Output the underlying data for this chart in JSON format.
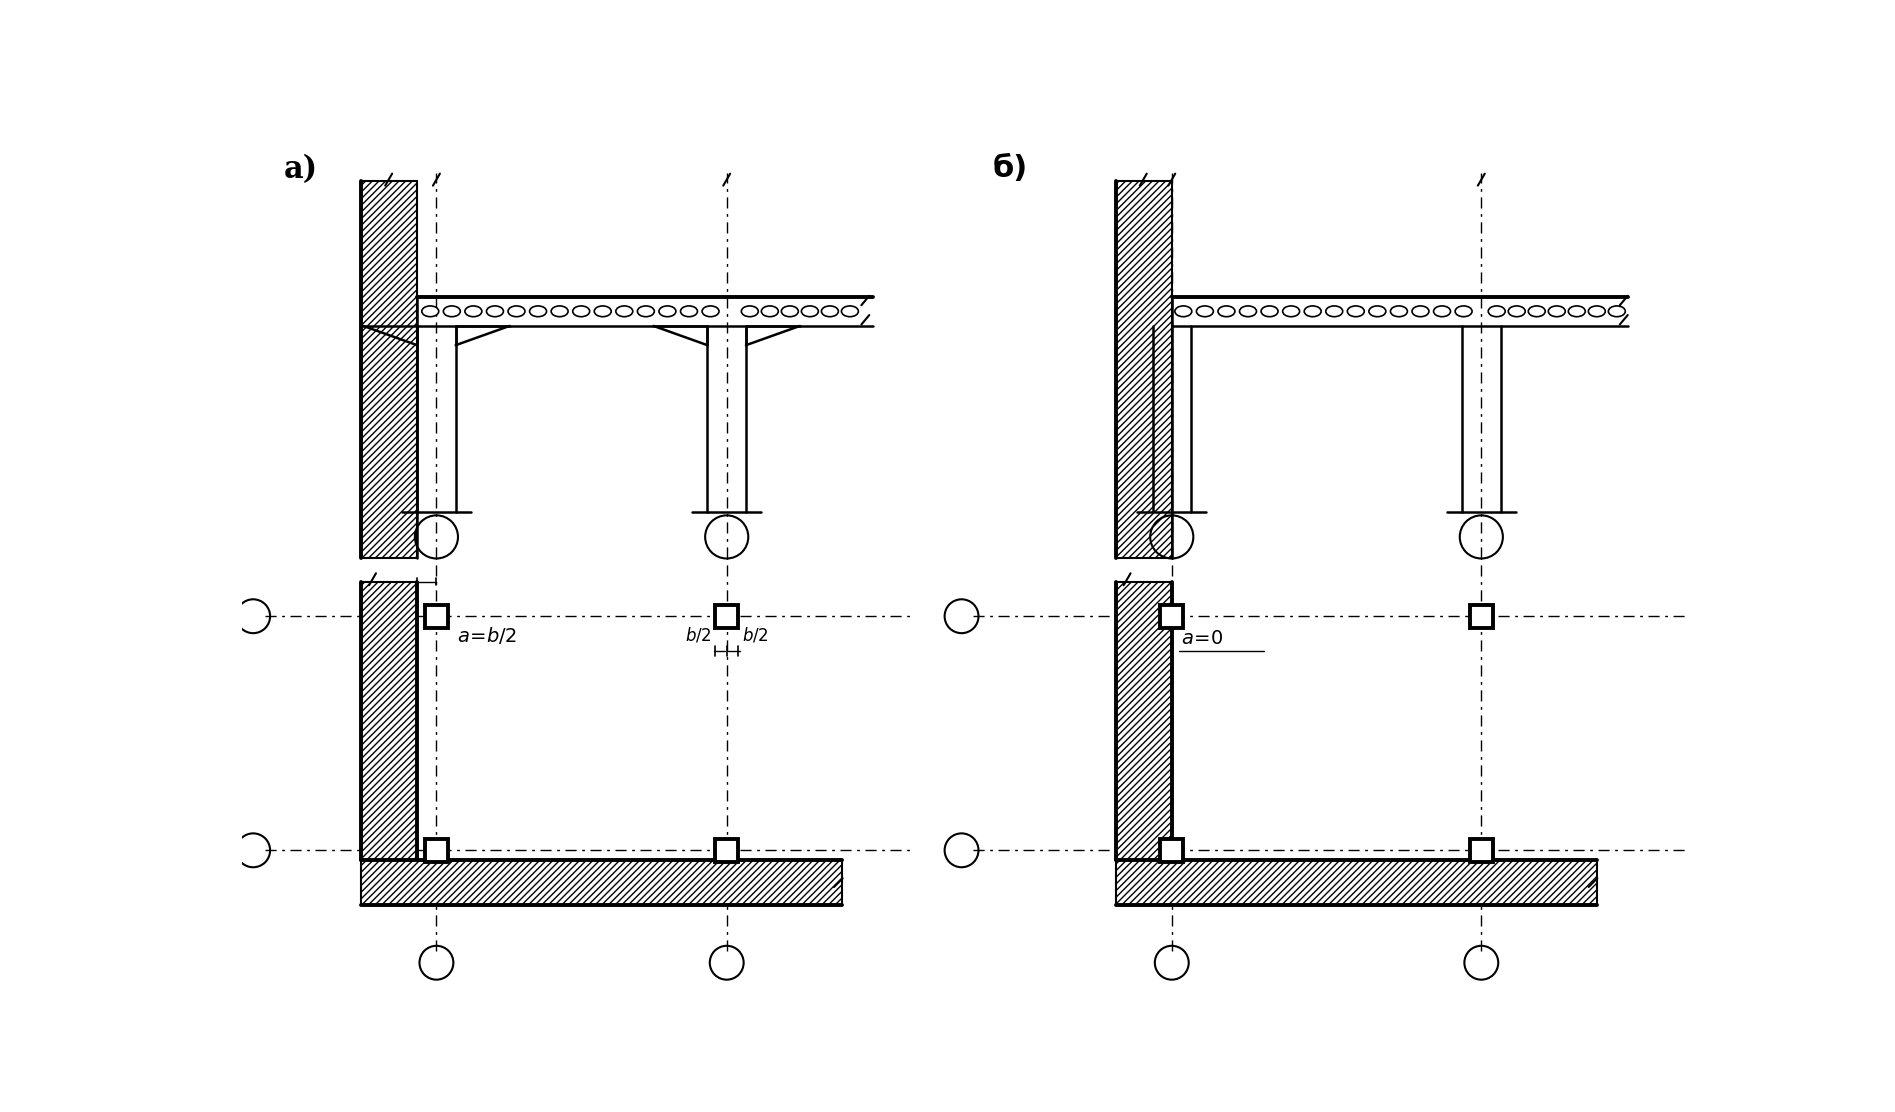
{
  "bg_color": "#ffffff",
  "label_a": "a)",
  "label_b": "б)",
  "annotation_a": "a=b/2",
  "annotation_b1": "b/2",
  "annotation_b2": "b/2",
  "annotation_b_right": "a=0"
}
